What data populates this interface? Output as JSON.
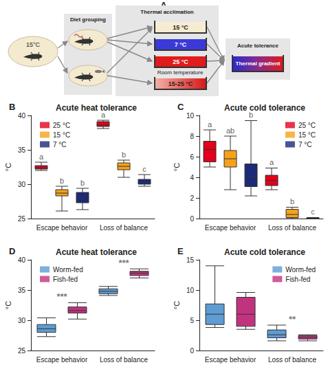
{
  "diagram": {
    "panel": "A",
    "start": "15°C",
    "diet": {
      "title": "Diet grouping"
    },
    "acclimation": {
      "title": "Thermal acclimation",
      "tanks": [
        {
          "label": "15 °C"
        },
        {
          "label": "7 °C"
        },
        {
          "label": "25 °C"
        },
        {
          "title": "Room temperature",
          "label": "15-25 °C"
        }
      ]
    },
    "tolerance": {
      "title": "Acute tolerance",
      "tank": "Thermal gradient"
    }
  },
  "chart_data": [
    {
      "panel": "B",
      "type": "boxplot",
      "title": "Acute heat tolerance",
      "ylabel": "°C",
      "categories": [
        "Escape behavior",
        "Loss of balance"
      ],
      "series": [
        {
          "name": "25 °C",
          "color": "#e2001a",
          "values": [
            [
              32.0,
              32.2,
              32.4,
              32.7,
              33.2
            ],
            [
              38.1,
              38.4,
              38.6,
              39.1,
              39.3
            ]
          ],
          "annotations": [
            "a",
            "a"
          ]
        },
        {
          "name": "15 °C",
          "color": "#f7a11a",
          "values": [
            [
              26.1,
              28.3,
              28.7,
              29.2,
              29.7
            ],
            [
              31.0,
              32.1,
              32.6,
              33.1,
              33.5
            ]
          ],
          "annotations": [
            "b",
            "b"
          ]
        },
        {
          "name": "7 °C",
          "color": "#1c2a78",
          "values": [
            [
              26.3,
              27.3,
              28.0,
              28.8,
              29.4
            ],
            [
              29.7,
              30.0,
              30.3,
              30.7,
              31.4
            ]
          ],
          "annotations": [
            "b",
            "c"
          ]
        }
      ],
      "ylim": [
        25,
        40
      ],
      "yticks": [
        25,
        30,
        35,
        40
      ],
      "grid": false,
      "legend": "upper left"
    },
    {
      "panel": "C",
      "type": "boxplot",
      "title": "Acute cold tolerance",
      "ylabel": "°C",
      "categories": [
        "Escape behavior",
        "Loss of balance"
      ],
      "series": [
        {
          "name": "25 °C",
          "color": "#e2001a",
          "values": [
            [
              5.0,
              5.5,
              6.7,
              7.5,
              8.6
            ],
            [
              2.8,
              3.2,
              3.7,
              4.2,
              4.9
            ]
          ],
          "annotations": [
            "a",
            "a"
          ]
        },
        {
          "name": "15 °C",
          "color": "#f7a11a",
          "values": [
            [
              2.8,
              5.0,
              5.8,
              6.6,
              8.0
            ],
            [
              0,
              0.1,
              0.4,
              0.9,
              1.1
            ]
          ],
          "annotations": [
            "ab",
            "b"
          ]
        },
        {
          "name": "7 °C",
          "color": "#1c2a78",
          "values": [
            [
              2.2,
              3.1,
              4.1,
              5.3,
              9.5
            ],
            [
              0,
              0,
              0.05,
              0.1,
              0.1
            ]
          ],
          "annotations": [
            "b",
            "c"
          ]
        }
      ],
      "ylim": [
        0,
        10
      ],
      "yticks": [
        0,
        2,
        4,
        6,
        8,
        10
      ],
      "grid": false,
      "legend": "upper right"
    },
    {
      "panel": "D",
      "type": "boxplot",
      "title": "Acute heat tolerance",
      "ylabel": "°C",
      "categories": [
        "Escape behavior",
        "Loss of balance"
      ],
      "series": [
        {
          "name": "Worm-fed",
          "color": "#5e9cd3",
          "values": [
            [
              27.3,
              28.0,
              28.6,
              29.3,
              30.4
            ],
            [
              34.1,
              34.4,
              34.8,
              35.2,
              35.6
            ]
          ]
        },
        {
          "name": "Fish-fed",
          "color": "#c2337f",
          "values": [
            [
              30.2,
              31.2,
              31.6,
              32.2,
              32.9
            ],
            [
              37.0,
              37.4,
              37.8,
              38.1,
              38.5
            ]
          ]
        }
      ],
      "annotations": [
        "***",
        "***"
      ],
      "ylim": [
        25,
        40
      ],
      "yticks": [
        25,
        30,
        35,
        40
      ],
      "grid": false,
      "legend": "upper left"
    },
    {
      "panel": "E",
      "type": "boxplot",
      "title": "Acute cold tolerance",
      "ylabel": "°C",
      "categories": [
        "Escape behavior",
        "Loss of balance"
      ],
      "series": [
        {
          "name": "Worm-fed",
          "color": "#5e9cd3",
          "values": [
            [
              3.8,
              4.3,
              6.0,
              7.7,
              14.0
            ],
            [
              1.6,
              2.1,
              2.6,
              3.4,
              4.2
            ]
          ]
        },
        {
          "name": "Fish-fed",
          "color": "#c2337f",
          "values": [
            [
              3.5,
              4.0,
              6.0,
              8.8,
              9.6
            ],
            [
              1.6,
              1.9,
              2.2,
              2.5,
              2.6
            ]
          ]
        }
      ],
      "annotations": [
        null,
        "**"
      ],
      "ylim": [
        0,
        15
      ],
      "yticks": [
        0,
        5,
        10,
        15
      ],
      "grid": false,
      "legend": "upper right"
    }
  ]
}
